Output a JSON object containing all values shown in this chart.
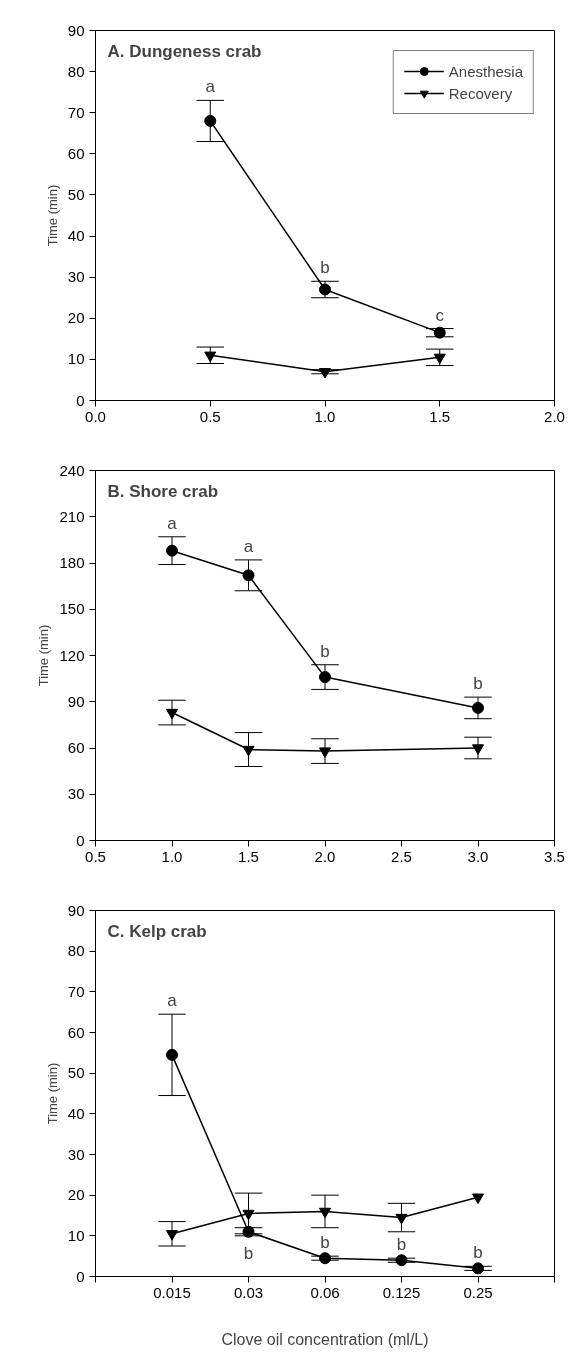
{
  "chart_data": [
    {
      "type": "line",
      "title": "A.  Dungeness crab",
      "ylabel": "Time (min)",
      "x": [
        0.5,
        1.0,
        1.5
      ],
      "xlim": [
        0.0,
        2.0
      ],
      "xticks": [
        {
          "value": 0.0,
          "label": "0.0"
        },
        {
          "value": 0.5,
          "label": "0.5"
        },
        {
          "value": 1.0,
          "label": "1.0"
        },
        {
          "value": 1.5,
          "label": "1.5"
        },
        {
          "value": 2.0,
          "label": "2.0"
        }
      ],
      "ylim": [
        0,
        90
      ],
      "yticks": [
        0,
        10,
        20,
        30,
        40,
        50,
        60,
        70,
        80,
        90
      ],
      "grid": false,
      "legend": "top right",
      "series": [
        {
          "name": "Anesthesia",
          "color": "#000000",
          "marker": "circle",
          "values": [
            68,
            27,
            16.5
          ],
          "errors": [
            5,
            2,
            1
          ]
        },
        {
          "name": "Recovery",
          "color": "#000000",
          "marker": "triangle",
          "values": [
            11,
            7,
            10.5
          ],
          "errors": [
            2,
            0.5,
            2
          ]
        }
      ],
      "annotations": [
        {
          "text": "a",
          "x": 0.5,
          "y": 68
        },
        {
          "text": "b",
          "x": 1.0,
          "y": 27
        },
        {
          "text": "c",
          "x": 1.5,
          "y": 16.5
        }
      ]
    },
    {
      "type": "line",
      "title": "B.  Shore crab",
      "ylabel": "Time (min)",
      "x": [
        1.0,
        1.5,
        2.0,
        3.0
      ],
      "xlim": [
        0.5,
        3.5
      ],
      "xticks": [
        {
          "value": 0.5,
          "label": "0.5"
        },
        {
          "value": 1.0,
          "label": "1.0"
        },
        {
          "value": 1.5,
          "label": "1.5"
        },
        {
          "value": 2.0,
          "label": "2.0"
        },
        {
          "value": 2.5,
          "label": "2.5"
        },
        {
          "value": 3.0,
          "label": "3.0"
        },
        {
          "value": 3.5,
          "label": "3.5"
        }
      ],
      "ylim": [
        0,
        240
      ],
      "yticks": [
        0,
        30,
        60,
        90,
        120,
        150,
        180,
        210,
        240
      ],
      "grid": false,
      "series": [
        {
          "color": "#000000",
          "marker": "circle",
          "values": [
            188,
            172,
            106,
            86
          ],
          "errors": [
            9,
            10,
            8,
            7
          ]
        },
        {
          "color": "#000000",
          "marker": "triangle",
          "values": [
            83,
            59,
            58,
            60
          ],
          "errors": [
            8,
            11,
            8,
            7
          ]
        }
      ],
      "annotations": [
        {
          "text": "a",
          "x": 1.0,
          "y": 188
        },
        {
          "text": "a",
          "x": 1.5,
          "y": 172
        },
        {
          "text": "b",
          "x": 2.0,
          "y": 106
        },
        {
          "text": "b",
          "x": 3.0,
          "y": 86
        }
      ]
    },
    {
      "type": "line",
      "title": "C.  Kelp crab",
      "ylabel": "Time (min)",
      "xlabel": "Clove oil concentration (ml/L)",
      "categories": [
        "0.015",
        "0.03",
        "0.06",
        "0.125",
        "0.25"
      ],
      "ylim": [
        0,
        90
      ],
      "yticks": [
        0,
        10,
        20,
        30,
        40,
        50,
        60,
        70,
        80,
        90
      ],
      "grid": false,
      "series": [
        {
          "color": "#000000",
          "marker": "circle",
          "values": [
            54.5,
            11,
            4.5,
            4,
            2
          ],
          "errors": [
            10,
            1,
            0.5,
            0.5,
            0.5
          ]
        },
        {
          "color": "#000000",
          "marker": "triangle",
          "values": [
            10.5,
            15.5,
            16,
            14.5,
            19.5
          ],
          "errors": [
            3,
            5,
            4,
            3.5,
            null
          ]
        }
      ],
      "annotations": [
        {
          "text": "a",
          "x": "0.015",
          "y": 54.5
        },
        {
          "text": "b",
          "x": "0.03",
          "y": 11
        },
        {
          "text": "b",
          "x": "0.06",
          "y": 4.5
        },
        {
          "text": "b",
          "x": "0.125",
          "y": 4
        },
        {
          "text": "b",
          "x": "0.25",
          "y": 2
        }
      ]
    }
  ]
}
